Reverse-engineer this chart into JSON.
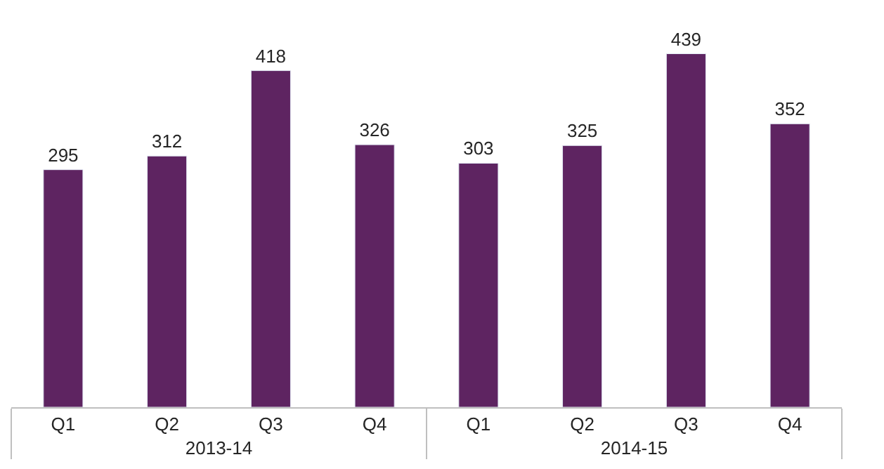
{
  "chart_data": {
    "type": "bar",
    "categories": [
      "Q1",
      "Q2",
      "Q3",
      "Q4",
      "Q1",
      "Q2",
      "Q3",
      "Q4"
    ],
    "values": [
      295,
      312,
      418,
      326,
      303,
      325,
      439,
      352
    ],
    "color": "#5e2461",
    "data_labels": true,
    "annotations": [
      "2013-14",
      "2014-15"
    ],
    "tick_labels": "x"
  }
}
